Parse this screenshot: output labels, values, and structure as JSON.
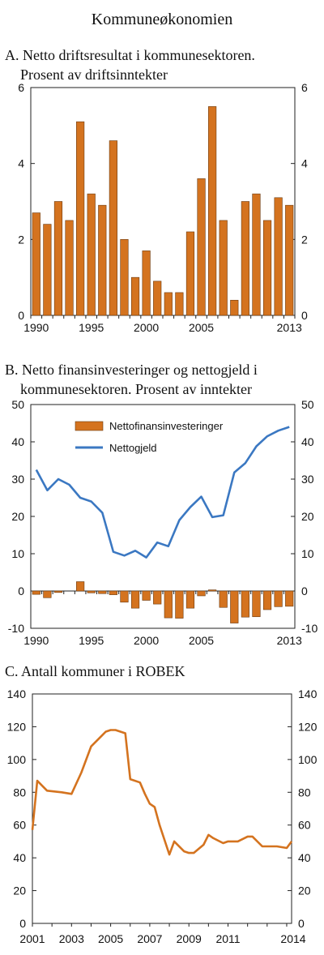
{
  "page_title": "Kommuneøkonomien",
  "chart_data": [
    {
      "type": "bar",
      "title_line1": "A.  Netto driftsresultat i kommunesektoren.",
      "title_line2": "Prosent av driftsinntekter",
      "x": [
        1990,
        1991,
        1992,
        1993,
        1994,
        1995,
        1996,
        1997,
        1998,
        1999,
        2000,
        2001,
        2002,
        2003,
        2004,
        2005,
        2006,
        2007,
        2008,
        2009,
        2010,
        2011,
        2012,
        2013
      ],
      "values": [
        2.7,
        2.4,
        3.0,
        2.5,
        5.1,
        3.2,
        2.9,
        4.6,
        2.0,
        1.0,
        1.7,
        0.9,
        0.6,
        0.6,
        2.2,
        3.6,
        5.5,
        2.5,
        0.4,
        3.0,
        3.2,
        2.5,
        3.1,
        2.9
      ],
      "ylim": [
        0,
        6
      ],
      "yticks": [
        "0",
        "2",
        "4",
        "6"
      ],
      "xtick_labels": [
        "1990",
        "1995",
        "2000",
        "2005",
        "2013"
      ],
      "colors": {
        "bar": "#d4731f"
      }
    },
    {
      "type": "bar+line",
      "title_line1": "B.  Netto finansinvesteringer og nettogjeld i",
      "title_line2": "kommunesektoren. Prosent av inntekter",
      "x": [
        1990,
        1991,
        1992,
        1993,
        1994,
        1995,
        1996,
        1997,
        1998,
        1999,
        2000,
        2001,
        2002,
        2003,
        2004,
        2005,
        2006,
        2007,
        2008,
        2009,
        2010,
        2011,
        2012,
        2013
      ],
      "series": [
        {
          "name": "Nettofinansinvesteringer",
          "kind": "bar",
          "values": [
            -0.9,
            -1.8,
            -0.4,
            0,
            2.5,
            -0.5,
            -0.7,
            -1.0,
            -3.0,
            -4.6,
            -2.5,
            -3.5,
            -7.2,
            -7.3,
            -4.6,
            -1.3,
            0.3,
            -4.4,
            -8.6,
            -7.0,
            -6.9,
            -5.0,
            -4.2,
            -4.1
          ]
        },
        {
          "name": "Nettogjeld",
          "kind": "line",
          "values": [
            32.5,
            27.0,
            30.0,
            28.5,
            25.0,
            24.0,
            21.0,
            10.5,
            9.5,
            10.8,
            9.0,
            13.0,
            12.0,
            19.0,
            22.5,
            25.3,
            19.8,
            20.3,
            31.8,
            34.3,
            38.8,
            41.5,
            43.0,
            44.0
          ]
        }
      ],
      "ylim": [
        -10,
        50
      ],
      "yticks": [
        "-10",
        "0",
        "10",
        "20",
        "30",
        "40",
        "50"
      ],
      "xtick_labels": [
        "1990",
        "1995",
        "2000",
        "2005",
        "2013"
      ],
      "legend_position": "top-center",
      "colors": {
        "bar": "#d4731f",
        "line": "#3b78c2"
      }
    },
    {
      "type": "line",
      "title_line1": "C.  Antall kommuner i ROBEK",
      "x": [
        2001.0,
        2001.25,
        2001.75,
        2002.5,
        2003.0,
        2003.5,
        2004.0,
        2004.75,
        2005.0,
        2005.25,
        2005.75,
        2006.0,
        2006.5,
        2006.75,
        2007.0,
        2007.25,
        2007.5,
        2008.0,
        2008.25,
        2008.75,
        2009.0,
        2009.25,
        2009.75,
        2010.0,
        2010.25,
        2010.75,
        2011.0,
        2011.5,
        2012.0,
        2012.25,
        2012.75,
        2013.0,
        2013.5,
        2014.0,
        2014.25
      ],
      "values": [
        57,
        87,
        81,
        80,
        79,
        92,
        108,
        117,
        118,
        118,
        116,
        88,
        86,
        79,
        73,
        71,
        60,
        42,
        50,
        44,
        43,
        43,
        48,
        54,
        52,
        49,
        50,
        50,
        53,
        53,
        47,
        47,
        47,
        46,
        50
      ],
      "ylim": [
        0,
        140
      ],
      "xlim": [
        2001.0,
        2014.25
      ],
      "yticks": [
        "0",
        "20",
        "40",
        "60",
        "80",
        "100",
        "120",
        "140"
      ],
      "xtick_labels": [
        "2001",
        "2003",
        "2005",
        "2007",
        "2009",
        "2011",
        "2014"
      ],
      "colors": {
        "line": "#d4731f"
      }
    }
  ]
}
